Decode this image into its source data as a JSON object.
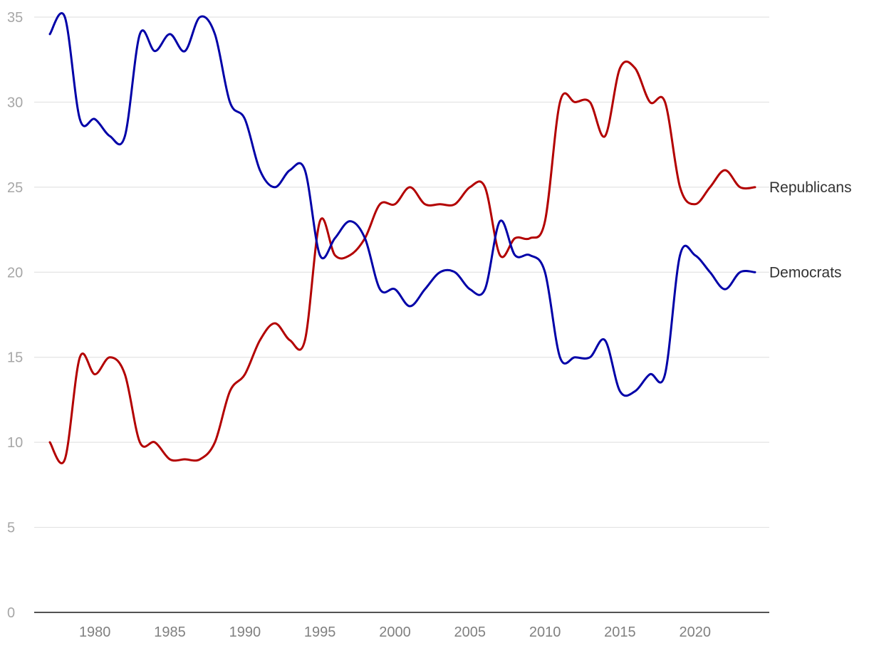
{
  "chart_data": {
    "type": "line",
    "title": "",
    "xlabel": "",
    "ylabel": "",
    "xlim": [
      1977,
      2024
    ],
    "ylim": [
      0,
      35
    ],
    "grid": true,
    "legend": "direct labels at line ends, right side",
    "y_ticks": [
      0,
      5,
      10,
      15,
      20,
      25,
      30,
      35
    ],
    "x_ticks": [
      1980,
      1985,
      1990,
      1995,
      2000,
      2005,
      2010,
      2015,
      2020
    ],
    "x": [
      1977,
      1978,
      1979,
      1980,
      1981,
      1982,
      1983,
      1984,
      1985,
      1986,
      1987,
      1988,
      1989,
      1990,
      1991,
      1992,
      1993,
      1994,
      1995,
      1996,
      1997,
      1998,
      1999,
      2000,
      2001,
      2002,
      2003,
      2004,
      2005,
      2006,
      2007,
      2008,
      2009,
      2010,
      2011,
      2012,
      2013,
      2014,
      2015,
      2016,
      2017,
      2018,
      2019,
      2020,
      2021,
      2022,
      2023,
      2024
    ],
    "series": [
      {
        "name": "Republicans",
        "color": "#b30000",
        "values": [
          10,
          9,
          15,
          14,
          15,
          14,
          10,
          10,
          9,
          9,
          9,
          10,
          13,
          14,
          16,
          17,
          16,
          16,
          23,
          21,
          21,
          22,
          24,
          24,
          25,
          24,
          24,
          24,
          25,
          25,
          21,
          22,
          22,
          23,
          30,
          30,
          30,
          28,
          32,
          32,
          30,
          30,
          25,
          24,
          25,
          26,
          25,
          25
        ]
      },
      {
        "name": "Democrats",
        "color": "#0000a8",
        "values": [
          34,
          35,
          29,
          29,
          28,
          28,
          34,
          33,
          34,
          33,
          35,
          34,
          30,
          29,
          26,
          25,
          26,
          26,
          21,
          22,
          23,
          22,
          19,
          19,
          18,
          19,
          20,
          20,
          19,
          19,
          23,
          21,
          21,
          20,
          15,
          15,
          15,
          16,
          13,
          13,
          14,
          14,
          21,
          21,
          20,
          19,
          20,
          20
        ]
      }
    ]
  }
}
